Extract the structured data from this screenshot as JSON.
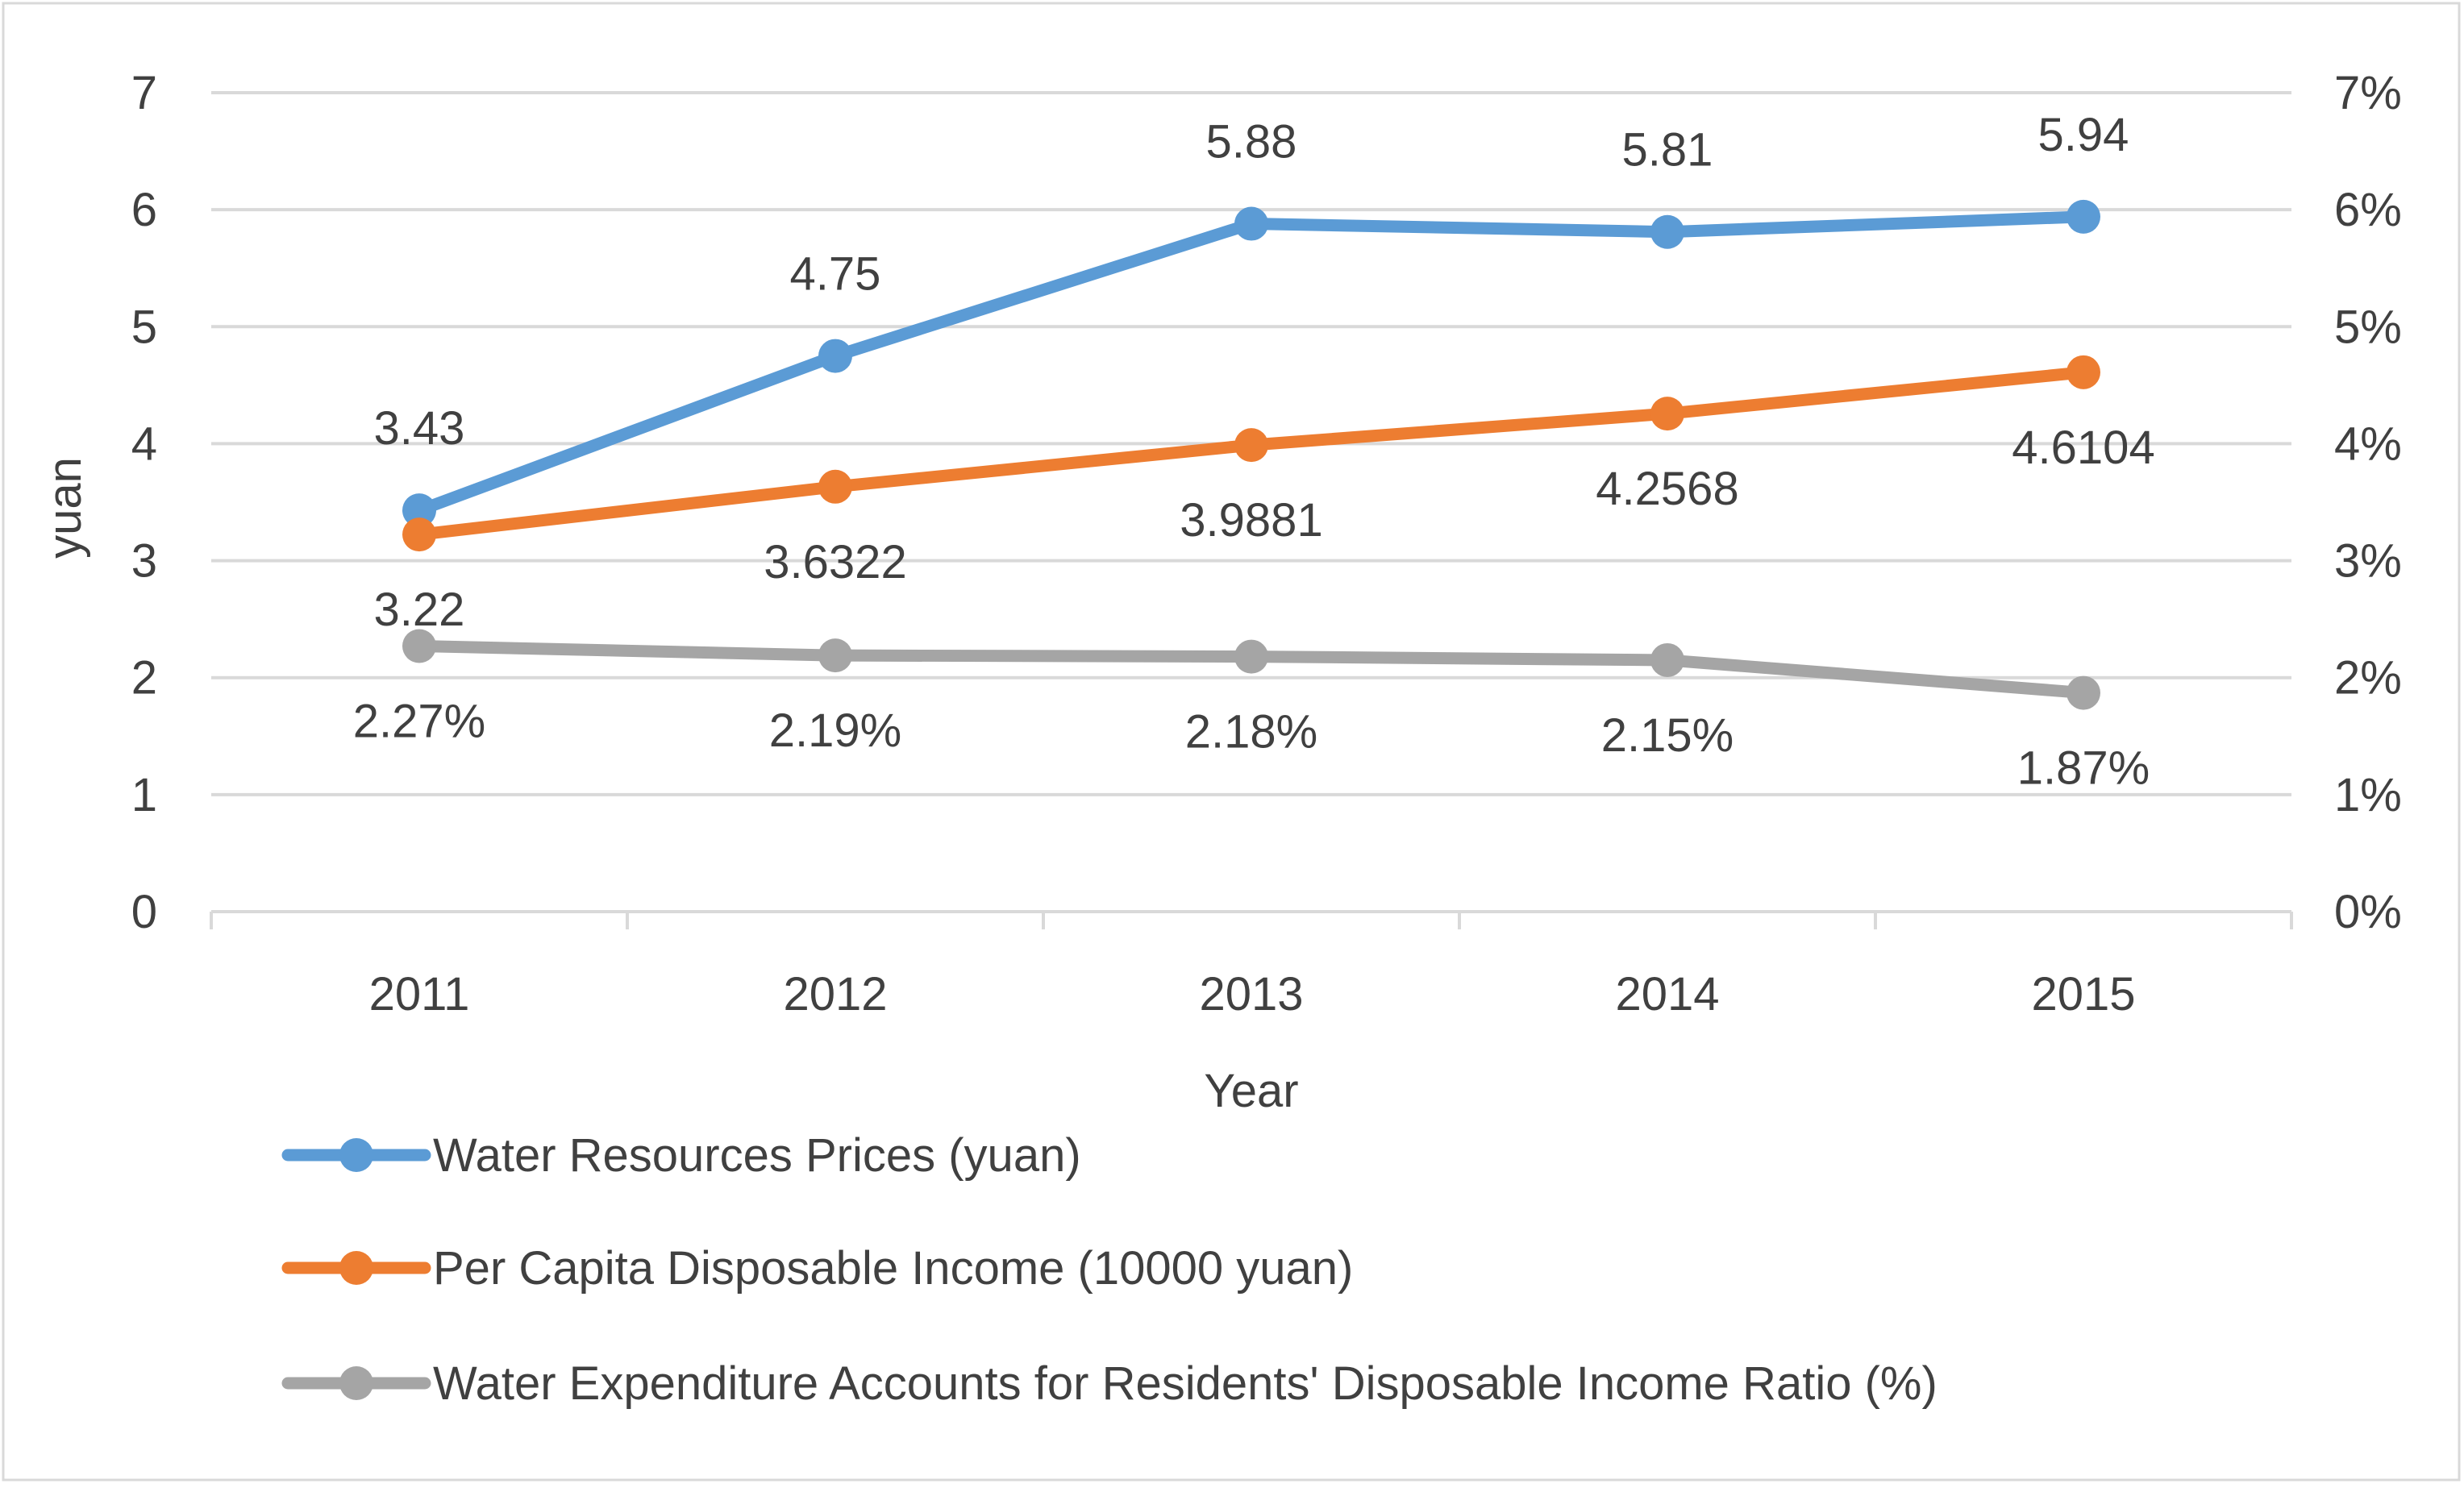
{
  "chart_data": {
    "type": "line",
    "categories": [
      "2011",
      "2012",
      "2013",
      "2014",
      "2015"
    ],
    "xlabel": "Year",
    "ylabel": "yuan",
    "ylim": [
      0,
      7
    ],
    "y_ticks": [
      "0",
      "1",
      "2",
      "3",
      "4",
      "5",
      "6",
      "7"
    ],
    "y2lim": [
      0,
      7
    ],
    "y2_ticks": [
      "0%",
      "1%",
      "2%",
      "3%",
      "4%",
      "5%",
      "6%",
      "7%"
    ],
    "grid": true,
    "legend_position": "bottom",
    "series": [
      {
        "name": "Water Resources Prices (yuan)",
        "axis": "left",
        "color": "#5B9BD5",
        "values": [
          3.43,
          4.75,
          5.88,
          5.81,
          5.94
        ],
        "labels": [
          "3.43",
          "4.75",
          "5.88",
          "5.81",
          "5.94"
        ],
        "label_position": "above"
      },
      {
        "name": "Per Capita Disposable Income (10000 yuan)",
        "axis": "left",
        "color": "#ED7D31",
        "values": [
          3.2234,
          3.6322,
          3.9881,
          4.2568,
          4.6104
        ],
        "labels": [
          "3.22",
          "3.6322",
          "3.9881",
          "4.2568",
          "4.6104"
        ],
        "label_position": "below"
      },
      {
        "name": "Water Expenditure Accounts for Residents' Disposable Income Ratio (%)",
        "axis": "right",
        "color": "#A5A5A5",
        "values": [
          2.27,
          2.19,
          2.18,
          2.15,
          1.87
        ],
        "labels": [
          "2.27%",
          "2.19%",
          "2.18%",
          "2.15%",
          "1.87%"
        ],
        "label_position": "below"
      }
    ]
  }
}
